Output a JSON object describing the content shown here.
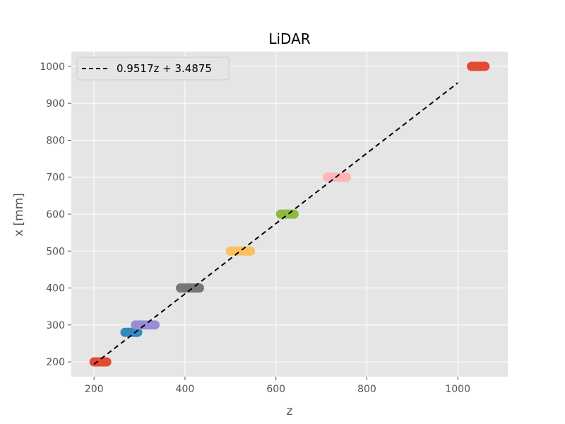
{
  "chart_data": {
    "type": "scatter",
    "title": "LiDAR",
    "xlabel": "z",
    "ylabel": "x [mm]",
    "xlim": [
      150,
      1110
    ],
    "ylim": [
      160,
      1040
    ],
    "xticks": [
      200,
      400,
      600,
      800,
      1000
    ],
    "yticks": [
      200,
      300,
      400,
      500,
      600,
      700,
      800,
      900,
      1000
    ],
    "grid": true,
    "legend_position": "top-left",
    "colors": {
      "background": "#e5e5e5",
      "grid": "#ffffff",
      "fit_line": "#000000"
    },
    "series": [
      {
        "color": "#e24a33",
        "y": 200,
        "x_range": [
          200,
          228
        ]
      },
      {
        "color": "#348abd",
        "y": 280,
        "x_range": [
          268,
          296
        ]
      },
      {
        "color": "#988ed5",
        "y": 300,
        "x_range": [
          291,
          334
        ]
      },
      {
        "color": "#777777",
        "y": 400,
        "x_range": [
          390,
          432
        ]
      },
      {
        "color": "#fbc15e",
        "y": 500,
        "x_range": [
          500,
          544
        ]
      },
      {
        "color": "#8eba42",
        "y": 600,
        "x_range": [
          610,
          640
        ]
      },
      {
        "color": "#ffb5b8",
        "y": 700,
        "x_range": [
          713,
          755
        ]
      },
      {
        "color": "#e24a33",
        "y": 1000,
        "x_range": [
          1030,
          1060
        ]
      }
    ],
    "fit_line": {
      "label": "0.9517z + 3.4875",
      "slope": 0.9517,
      "intercept": 3.4875,
      "x_range": [
        200,
        1000
      ],
      "style": "dashed"
    }
  }
}
